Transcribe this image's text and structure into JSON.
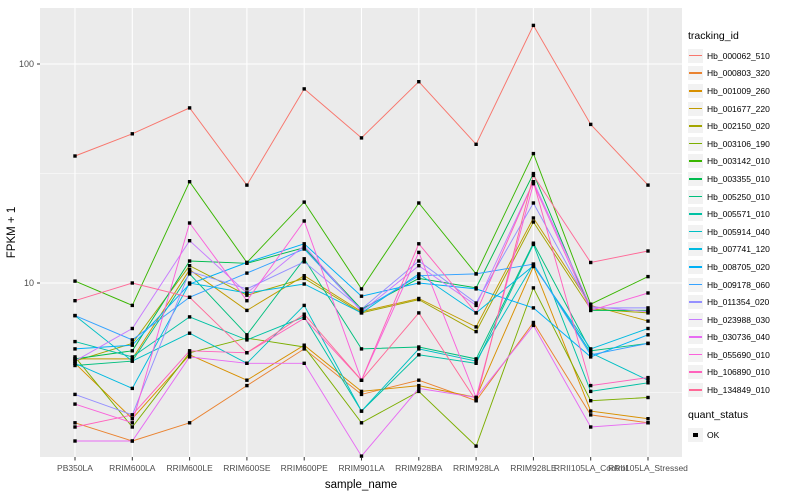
{
  "figure": {
    "background": "#FFFFFF",
    "panel_background": "#EBEBEB",
    "grid_color": "#FFFFFF",
    "tick_color": "#333333",
    "tick_label_color": "#4D4D4D",
    "axis_title_color": "#000000",
    "point_color": "#000000",
    "legend_key_background": "#F2F2F2"
  },
  "chart_data": {
    "type": "line",
    "title": "",
    "xlabel": "sample_name",
    "ylabel": "FPKM + 1",
    "y_scale": "log10",
    "y_ticks": [
      10,
      100
    ],
    "y_minor_ticks": [
      3.162,
      31.62
    ],
    "ylim": [
      1.6,
      180
    ],
    "grid": true,
    "point_marker": "black-square",
    "legend": {
      "title": "tracking_id",
      "position": "right"
    },
    "quant_legend": {
      "title": "quant_status",
      "items": [
        {
          "label": "OK",
          "marker": "black-square"
        }
      ]
    },
    "categories": [
      "PB350LA",
      "RRIM600LA",
      "RRIM600LE",
      "RRIM600SE",
      "RRIM600PE",
      "RRIM901LA",
      "RRIM928BA",
      "RRIM928LA",
      "RRIM928LE",
      "RRII105LA_Control",
      "RRII105LA_Stressed"
    ],
    "series": [
      {
        "name": "Hb_000062_510",
        "color": "#F8766D",
        "values": [
          38,
          48,
          63,
          28,
          77,
          46,
          83,
          43,
          150,
          53,
          28
        ]
      },
      {
        "name": "Hb_000803_320",
        "color": "#EA8331",
        "values": [
          2.3,
          1.9,
          2.3,
          3.4,
          5.0,
          3.1,
          3.6,
          2.9,
          6.6,
          2.5,
          2.3
        ]
      },
      {
        "name": "Hb_001009_260",
        "color": "#D89000",
        "values": [
          4.3,
          2.4,
          4.7,
          3.6,
          5.2,
          3.2,
          3.4,
          3.0,
          11.9,
          2.6,
          2.4
        ]
      },
      {
        "name": "Hb_001677_220",
        "color": "#C09B00",
        "values": [
          4.5,
          4.5,
          11.5,
          7.5,
          10.8,
          7.4,
          8.5,
          6.3,
          19.8,
          7.9,
          6.7
        ]
      },
      {
        "name": "Hb_002150_020",
        "color": "#A3A500",
        "values": [
          4.4,
          5.3,
          12.0,
          8.8,
          10.5,
          7.3,
          8.4,
          6.0,
          19.0,
          7.6,
          7.3
        ]
      },
      {
        "name": "Hb_003106_190",
        "color": "#7CAE00",
        "values": [
          4.6,
          2.2,
          4.8,
          5.6,
          5.1,
          2.3,
          3.2,
          1.8,
          9.5,
          2.9,
          3.0
        ]
      },
      {
        "name": "Hb_003142_010",
        "color": "#39B600",
        "values": [
          10.2,
          7.9,
          29.0,
          12.4,
          23.4,
          9.4,
          23.2,
          11.0,
          39.0,
          8.0,
          10.7
        ]
      },
      {
        "name": "Hb_003355_010",
        "color": "#00BB4E",
        "values": [
          4.5,
          4.9,
          12.6,
          12.3,
          14.5,
          7.6,
          10.5,
          9.5,
          31.6,
          7.5,
          7.5
        ]
      },
      {
        "name": "Hb_005250_010",
        "color": "#00BF7D",
        "values": [
          4.2,
          4.4,
          11.0,
          5.8,
          12.9,
          5.0,
          5.1,
          4.5,
          15.2,
          4.9,
          5.3
        ]
      },
      {
        "name": "Hb_005571_010",
        "color": "#00C1A3",
        "values": [
          5.4,
          4.6,
          7.0,
          5.5,
          7.0,
          2.6,
          4.7,
          4.3,
          15.0,
          3.2,
          3.5
        ]
      },
      {
        "name": "Hb_005914_040",
        "color": "#00BFC4",
        "values": [
          7.1,
          4.4,
          5.9,
          4.3,
          7.9,
          2.6,
          5.0,
          4.4,
          12.2,
          4.8,
          3.6
        ]
      },
      {
        "name": "Hb_007741_120",
        "color": "#00BAE0",
        "values": [
          4.3,
          3.3,
          10.0,
          9.0,
          9.9,
          7.3,
          11.0,
          7.3,
          12.0,
          5.0,
          6.2
        ]
      },
      {
        "name": "Hb_008705_020",
        "color": "#00B0F6",
        "values": [
          5.0,
          5.2,
          9.9,
          12.4,
          15.1,
          8.7,
          10.0,
          9.4,
          7.7,
          4.6,
          5.8
        ]
      },
      {
        "name": "Hb_009178_060",
        "color": "#35A2FF",
        "values": [
          7.1,
          5.5,
          8.6,
          11.1,
          14.3,
          7.5,
          10.8,
          11.0,
          12.2,
          4.7,
          5.3
        ]
      },
      {
        "name": "Hb_011354_020",
        "color": "#9590FF",
        "values": [
          3.1,
          2.5,
          11.3,
          9.4,
          12.5,
          7.6,
          12.6,
          8.1,
          23.2,
          7.7,
          7.7
        ]
      },
      {
        "name": "Hb_023988_030",
        "color": "#C77CFF",
        "values": [
          4.4,
          6.2,
          15.6,
          9.0,
          14.8,
          7.4,
          12.0,
          7.9,
          29.0,
          7.8,
          7.4
        ]
      },
      {
        "name": "Hb_030736_040",
        "color": "#E76BF3",
        "values": [
          1.9,
          1.9,
          4.6,
          4.3,
          4.3,
          1.62,
          3.3,
          3.0,
          6.4,
          2.2,
          2.3
        ]
      },
      {
        "name": "Hb_055690_010",
        "color": "#FA62DB",
        "values": [
          2.8,
          2.3,
          18.8,
          8.3,
          19.2,
          3.6,
          13.8,
          3.0,
          28.4,
          7.5,
          9.0
        ]
      },
      {
        "name": "Hb_106890_010",
        "color": "#FF62BC",
        "values": [
          2.2,
          2.5,
          4.9,
          4.8,
          6.9,
          3.6,
          15.1,
          7.3,
          29.0,
          3.4,
          3.7
        ]
      },
      {
        "name": "Hb_134849_010",
        "color": "#FF6A98",
        "values": [
          8.3,
          10.0,
          8.6,
          4.8,
          7.2,
          3.6,
          7.3,
          2.9,
          31.0,
          12.4,
          14.0
        ]
      }
    ]
  }
}
